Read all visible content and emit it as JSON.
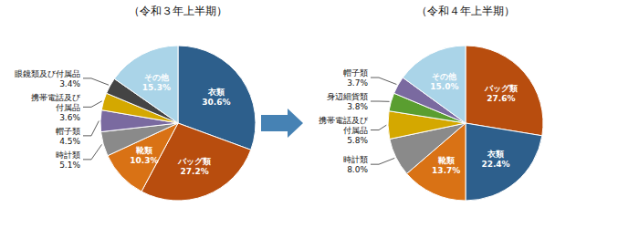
{
  "chart_data": [
    {
      "type": "pie",
      "title": "（令和３年上半期）",
      "categories": [
        "衣類",
        "バッグ類",
        "靴類",
        "時計類",
        "帽子類",
        "携帯電話及び\n付属品",
        "眼鏡類及び付属品",
        "その他"
      ],
      "values": [
        30.6,
        27.2,
        10.3,
        5.1,
        4.5,
        3.6,
        3.4,
        15.3
      ],
      "value_labels": [
        "30.6%",
        "27.2%",
        "10.3%",
        "5.1%",
        "4.5%",
        "3.6%",
        "3.4%",
        "15.3%"
      ],
      "colors": [
        "#2d5f8c",
        "#b84d0e",
        "#d97215",
        "#8a8a8a",
        "#7a6aa0",
        "#d4a800",
        "#444444",
        "#aad4e8"
      ],
      "data_labels": true
    },
    {
      "type": "pie",
      "title": "（令和４年上半期）",
      "categories": [
        "バッグ類",
        "衣類",
        "靴類",
        "時計類",
        "携帯電話及び\n付属品",
        "身辺細貨類",
        "帽子類",
        "その他"
      ],
      "values": [
        27.6,
        22.4,
        13.7,
        8.0,
        5.8,
        3.8,
        3.7,
        15.0
      ],
      "value_labels": [
        "27.6%",
        "22.4%",
        "13.7%",
        "8.0%",
        "5.8%",
        "3.8%",
        "3.7%",
        "15.0%"
      ],
      "colors": [
        "#b84d0e",
        "#2d5f8c",
        "#d97215",
        "#8a8a8a",
        "#d4a800",
        "#5a9e30",
        "#7a6aa0",
        "#aad4e8"
      ],
      "data_labels": true
    }
  ]
}
